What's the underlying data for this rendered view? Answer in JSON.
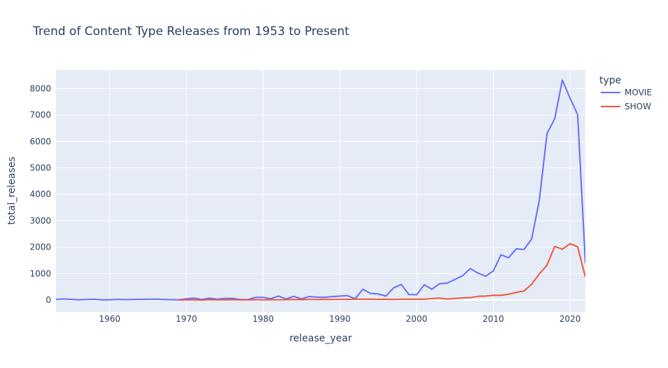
{
  "chart_data": {
    "type": "line",
    "title": "Trend of Content Type Releases from 1953 to Present",
    "xlabel": "release_year",
    "ylabel": "total_releases",
    "xlim": [
      1953,
      2022
    ],
    "ylim": [
      -450,
      8700
    ],
    "x_ticks": [
      1960,
      1970,
      1980,
      1990,
      2000,
      2010,
      2020
    ],
    "y_ticks": [
      0,
      1000,
      2000,
      3000,
      4000,
      5000,
      6000,
      7000,
      8000
    ],
    "grid": true,
    "legend": {
      "title": "type",
      "position": "right"
    },
    "series": [
      {
        "name": "MOVIE",
        "color": "#636efa",
        "x": [
          1953,
          1954,
          1955,
          1956,
          1957,
          1958,
          1959,
          1960,
          1961,
          1962,
          1963,
          1964,
          1965,
          1966,
          1967,
          1968,
          1969,
          1970,
          1971,
          1972,
          1973,
          1974,
          1975,
          1976,
          1977,
          1978,
          1979,
          1980,
          1981,
          1982,
          1983,
          1984,
          1985,
          1986,
          1987,
          1988,
          1989,
          1990,
          1991,
          1992,
          1993,
          1994,
          1995,
          1996,
          1997,
          1998,
          1999,
          2000,
          2001,
          2002,
          2003,
          2004,
          2005,
          2006,
          2007,
          2008,
          2009,
          2010,
          2011,
          2012,
          2013,
          2014,
          2015,
          2016,
          2017,
          2018,
          2019,
          2020,
          2021,
          2022
        ],
        "y": [
          20,
          40,
          25,
          10,
          20,
          30,
          10,
          5,
          25,
          15,
          20,
          25,
          30,
          35,
          20,
          15,
          10,
          45,
          75,
          20,
          70,
          30,
          60,
          65,
          20,
          15,
          100,
          100,
          50,
          150,
          40,
          140,
          40,
          130,
          110,
          100,
          130,
          150,
          165,
          50,
          410,
          250,
          230,
          150,
          460,
          590,
          210,
          200,
          580,
          410,
          620,
          640,
          780,
          920,
          1190,
          1020,
          900,
          1100,
          1710,
          1600,
          1940,
          1910,
          2310,
          3790,
          6300,
          6860,
          8320,
          7640,
          7010,
          1390
        ]
      },
      {
        "name": "SHOW",
        "color": "#ef553b",
        "x": [
          1969,
          1970,
          1971,
          1972,
          1973,
          1974,
          1975,
          1976,
          1977,
          1978,
          1979,
          1980,
          1981,
          1982,
          1983,
          1984,
          1985,
          1986,
          1987,
          1988,
          1989,
          1990,
          1991,
          1992,
          1993,
          1994,
          1995,
          1996,
          1997,
          1998,
          1999,
          2000,
          2001,
          2002,
          2003,
          2004,
          2005,
          2006,
          2007,
          2008,
          2009,
          2010,
          2011,
          2012,
          2013,
          2014,
          2015,
          2016,
          2017,
          2018,
          2019,
          2020,
          2021,
          2022
        ],
        "y": [
          0,
          5,
          10,
          0,
          15,
          5,
          10,
          15,
          5,
          10,
          15,
          10,
          15,
          10,
          15,
          20,
          15,
          20,
          20,
          25,
          20,
          25,
          25,
          30,
          30,
          35,
          25,
          30,
          20,
          30,
          30,
          30,
          30,
          55,
          70,
          35,
          60,
          80,
          90,
          140,
          150,
          180,
          175,
          220,
          290,
          340,
          600,
          990,
          1320,
          2030,
          1920,
          2130,
          2010,
          870
        ]
      }
    ]
  }
}
